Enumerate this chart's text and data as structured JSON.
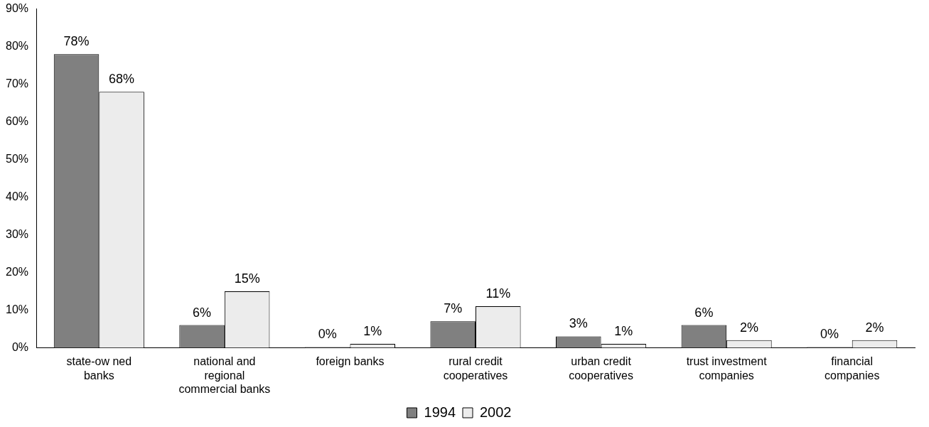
{
  "chart_data": {
    "type": "bar",
    "categories": [
      "state-ow ned banks",
      "national and regional commercial banks",
      "foreign banks",
      "rural credit cooperatives",
      "urban credit cooperatives",
      "trust investment companies",
      "financial companies"
    ],
    "series": [
      {
        "name": "1994",
        "color": "#808080",
        "values": [
          78,
          6,
          0,
          7,
          3,
          6,
          0
        ],
        "value_labels": [
          "78%",
          "6%",
          "0%",
          "7%",
          "3%",
          "6%",
          "0%"
        ]
      },
      {
        "name": "2002",
        "color": "#ececec",
        "values": [
          68,
          15,
          1,
          11,
          1,
          2,
          2
        ],
        "value_labels": [
          "68%",
          "15%",
          "1%",
          "11%",
          "1%",
          "2%",
          "2%"
        ]
      }
    ],
    "ylim": [
      0,
      90
    ],
    "yticks": [
      {
        "value": 0,
        "label": "0%"
      },
      {
        "value": 10,
        "label": "10%"
      },
      {
        "value": 20,
        "label": "20%"
      },
      {
        "value": 30,
        "label": "30%"
      },
      {
        "value": 40,
        "label": "40%"
      },
      {
        "value": 50,
        "label": "50%"
      },
      {
        "value": 60,
        "label": "60%"
      },
      {
        "value": 70,
        "label": "70%"
      },
      {
        "value": 80,
        "label": "80%"
      },
      {
        "value": 90,
        "label": "90%"
      }
    ],
    "grid": false,
    "legend": "bottom"
  }
}
